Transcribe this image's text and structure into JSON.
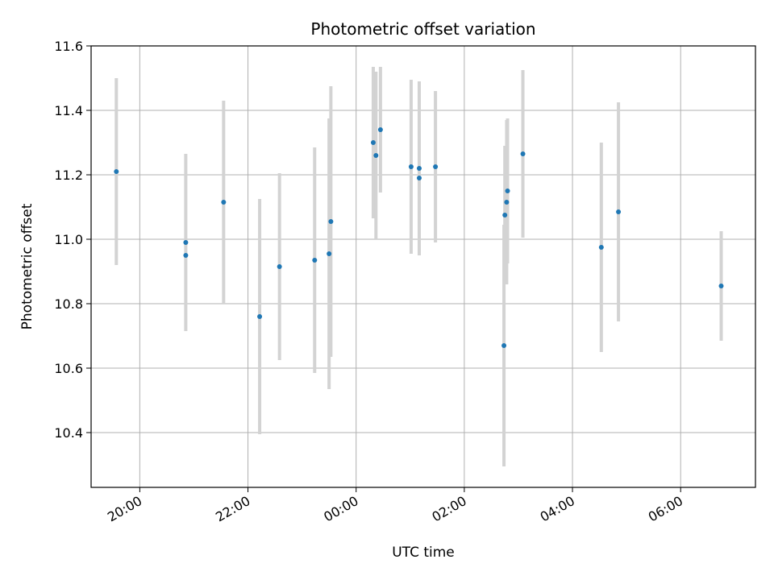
{
  "chart_data": {
    "type": "scatter",
    "title": "Photometric offset variation",
    "xlabel": "UTC time",
    "ylabel": "Photometric offset",
    "ylim": [
      10.23,
      11.6
    ],
    "xlim": [
      "19:06",
      "07:23"
    ],
    "grid": true,
    "errorbar_color": "#d3d3d3",
    "marker_color": "#1f77b4",
    "x_ticks": [
      "20:00",
      "22:00",
      "00:00",
      "02:00",
      "04:00",
      "06:00"
    ],
    "y_ticks": [
      "10.4",
      "10.6",
      "10.8",
      "11.0",
      "11.2",
      "11.4",
      "11.6"
    ],
    "points": [
      {
        "x": "19:34",
        "y": 11.21,
        "err": 0.29
      },
      {
        "x": "20:51",
        "y": 10.99,
        "err": 0.275
      },
      {
        "x": "20:51",
        "y": 10.95,
        "err": 0.0
      },
      {
        "x": "21:33",
        "y": 11.115,
        "err": 0.315
      },
      {
        "x": "22:13",
        "y": 10.76,
        "err": 0.365
      },
      {
        "x": "22:35",
        "y": 10.915,
        "err": 0.29
      },
      {
        "x": "23:14",
        "y": 10.935,
        "err": 0.35
      },
      {
        "x": "23:30",
        "y": 10.955,
        "err": 0.42
      },
      {
        "x": "23:32",
        "y": 11.055,
        "err": 0.42
      },
      {
        "x": "00:19",
        "y": 11.3,
        "err": 0.235
      },
      {
        "x": "00:22",
        "y": 11.26,
        "err": 0.26
      },
      {
        "x": "00:27",
        "y": 11.34,
        "err": 0.195
      },
      {
        "x": "01:01",
        "y": 11.225,
        "err": 0.27
      },
      {
        "x": "01:10",
        "y": 11.22,
        "err": 0.27
      },
      {
        "x": "01:10",
        "y": 11.19,
        "err": 0.0
      },
      {
        "x": "01:28",
        "y": 11.225,
        "err": 0.235
      },
      {
        "x": "02:44",
        "y": 10.67,
        "err": 0.375
      },
      {
        "x": "02:45",
        "y": 11.075,
        "err": 0.215
      },
      {
        "x": "02:47",
        "y": 11.115,
        "err": 0.255
      },
      {
        "x": "02:48",
        "y": 11.15,
        "err": 0.225
      },
      {
        "x": "03:05",
        "y": 11.265,
        "err": 0.26
      },
      {
        "x": "04:32",
        "y": 10.975,
        "err": 0.325
      },
      {
        "x": "04:51",
        "y": 11.085,
        "err": 0.34
      },
      {
        "x": "06:45",
        "y": 10.855,
        "err": 0.17
      }
    ]
  }
}
